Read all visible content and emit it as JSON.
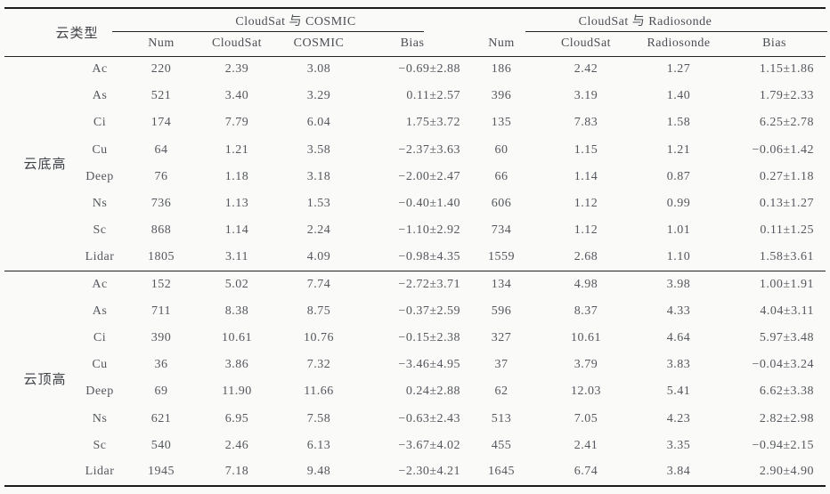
{
  "table": {
    "corner_header": "云类型",
    "group_headers": {
      "left": "CloudSat 与 COSMIC",
      "right": "CloudSat 与 Radiosonde"
    },
    "sub_headers": [
      "Num",
      "CloudSat",
      "COSMIC",
      "Bias",
      "Num",
      "CloudSat",
      "Radiosonde",
      "Bias"
    ],
    "row_groups": [
      {
        "label": "云底高",
        "rows": [
          {
            "type": "Ac",
            "values": [
              "220",
              "2.39",
              "3.08",
              "−0.69±2.88",
              "186",
              "2.42",
              "1.27",
              "1.15±1.86"
            ]
          },
          {
            "type": "As",
            "values": [
              "521",
              "3.40",
              "3.29",
              "0.11±2.57",
              "396",
              "3.19",
              "1.40",
              "1.79±2.33"
            ]
          },
          {
            "type": "Ci",
            "values": [
              "174",
              "7.79",
              "6.04",
              "1.75±3.72",
              "135",
              "7.83",
              "1.58",
              "6.25±2.78"
            ]
          },
          {
            "type": "Cu",
            "values": [
              "64",
              "1.21",
              "3.58",
              "−2.37±3.63",
              "60",
              "1.15",
              "1.21",
              "−0.06±1.42"
            ]
          },
          {
            "type": "Deep",
            "values": [
              "76",
              "1.18",
              "3.18",
              "−2.00±2.47",
              "66",
              "1.14",
              "0.87",
              "0.27±1.18"
            ]
          },
          {
            "type": "Ns",
            "values": [
              "736",
              "1.13",
              "1.53",
              "−0.40±1.40",
              "606",
              "1.12",
              "0.99",
              "0.13±1.27"
            ]
          },
          {
            "type": "Sc",
            "values": [
              "868",
              "1.14",
              "2.24",
              "−1.10±2.92",
              "734",
              "1.12",
              "1.01",
              "0.11±1.25"
            ]
          },
          {
            "type": "Lidar",
            "values": [
              "1805",
              "3.11",
              "4.09",
              "−0.98±4.35",
              "1559",
              "2.68",
              "1.10",
              "1.58±3.61"
            ]
          }
        ]
      },
      {
        "label": "云顶高",
        "rows": [
          {
            "type": "Ac",
            "values": [
              "152",
              "5.02",
              "7.74",
              "−2.72±3.71",
              "134",
              "4.98",
              "3.98",
              "1.00±1.91"
            ]
          },
          {
            "type": "As",
            "values": [
              "711",
              "8.38",
              "8.75",
              "−0.37±2.59",
              "596",
              "8.37",
              "4.33",
              "4.04±3.11"
            ]
          },
          {
            "type": "Ci",
            "values": [
              "390",
              "10.61",
              "10.76",
              "−0.15±2.38",
              "327",
              "10.61",
              "4.64",
              "5.97±3.48"
            ]
          },
          {
            "type": "Cu",
            "values": [
              "36",
              "3.86",
              "7.32",
              "−3.46±4.95",
              "37",
              "3.79",
              "3.83",
              "−0.04±3.24"
            ]
          },
          {
            "type": "Deep",
            "values": [
              "69",
              "11.90",
              "11.66",
              "0.24±2.88",
              "62",
              "12.03",
              "5.41",
              "6.62±3.38"
            ]
          },
          {
            "type": "Ns",
            "values": [
              "621",
              "6.95",
              "7.58",
              "−0.63±2.43",
              "513",
              "7.05",
              "4.23",
              "2.82±2.98"
            ]
          },
          {
            "type": "Sc",
            "values": [
              "540",
              "2.46",
              "6.13",
              "−3.67±4.02",
              "455",
              "2.41",
              "3.35",
              "−0.94±2.15"
            ]
          },
          {
            "type": "Lidar",
            "values": [
              "1945",
              "7.18",
              "9.48",
              "−2.30±4.21",
              "1645",
              "6.74",
              "3.84",
              "2.90±4.90"
            ]
          }
        ]
      }
    ]
  }
}
